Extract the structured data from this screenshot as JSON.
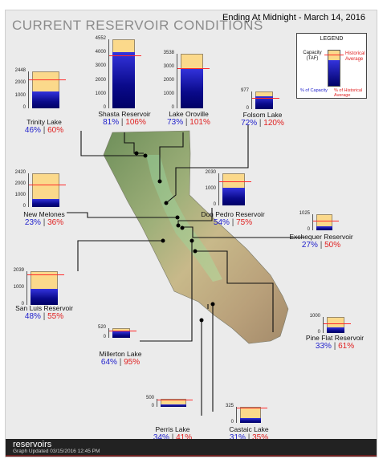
{
  "title": "CURRENT RESERVOIR CONDITIONS",
  "ending": "Ending At Midnight - March 14, 2016",
  "legend": {
    "title": "LEGEND",
    "capacity": "Capacity (TAF)",
    "historical": "Historical Average",
    "pct_capacity": "% of Capacity",
    "pct_historical": "% of Historical Average"
  },
  "reservoirs": [
    {
      "id": "trinity",
      "name": "Trinity Lake",
      "ticks": [
        "2448",
        "2000",
        "1000",
        "0"
      ],
      "pct_capacity": "46%",
      "pct_hist": "60%",
      "fill": 0.46,
      "hist": 0.77
    },
    {
      "id": "shasta",
      "name": "Shasta Reservoir",
      "ticks": [
        "4552",
        "4000",
        "3000",
        "2000",
        "1000",
        "0"
      ],
      "pct_capacity": "81%",
      "pct_hist": "106%",
      "fill": 0.81,
      "hist": 0.76
    },
    {
      "id": "oroville",
      "name": "Lake Oroville",
      "ticks": [
        "3538",
        "3000",
        "2000",
        "1000",
        "0"
      ],
      "pct_capacity": "73%",
      "pct_hist": "101%",
      "fill": 0.73,
      "hist": 0.72
    },
    {
      "id": "folsom",
      "name": "Folsom Lake",
      "ticks": [
        "977",
        "0"
      ],
      "pct_capacity": "72%",
      "pct_hist": "120%",
      "fill": 0.72,
      "hist": 0.6
    },
    {
      "id": "newmelones",
      "name": "New Melones",
      "ticks": [
        "2420",
        "2000",
        "1000",
        "0"
      ],
      "pct_capacity": "23%",
      "pct_hist": "36%",
      "fill": 0.23,
      "hist": 0.64
    },
    {
      "id": "donpedro",
      "name": "Don Pedro Reservoir",
      "ticks": [
        "2030",
        "1000",
        "0"
      ],
      "pct_capacity": "54%",
      "pct_hist": "75%",
      "fill": 0.54,
      "hist": 0.72
    },
    {
      "id": "exchequer",
      "name": "Exchequer Reservoir",
      "ticks": [
        "1025",
        "0"
      ],
      "pct_capacity": "27%",
      "pct_hist": "50%",
      "fill": 0.27,
      "hist": 0.54
    },
    {
      "id": "sanluis",
      "name": "San Luis Reservoir",
      "ticks": [
        "2039",
        "1000",
        "0"
      ],
      "pct_capacity": "48%",
      "pct_hist": "55%",
      "fill": 0.48,
      "hist": 0.87
    },
    {
      "id": "millerton",
      "name": "Millerton Lake",
      "ticks": [
        "520",
        "0"
      ],
      "pct_capacity": "64%",
      "pct_hist": "95%",
      "fill": 0.64,
      "hist": 0.67
    },
    {
      "id": "pineflat",
      "name": "Pine Flat Reservoir",
      "ticks": [
        "1000",
        "0"
      ],
      "pct_capacity": "33%",
      "pct_hist": "61%",
      "fill": 0.33,
      "hist": 0.54
    },
    {
      "id": "perris",
      "name": "Perris Lake",
      "ticks": [
        "500",
        "0"
      ],
      "pct_capacity": "34%",
      "pct_hist": "41%",
      "fill": 0.34,
      "hist": 0.83
    },
    {
      "id": "castaic",
      "name": "Castaic Lake",
      "ticks": [
        "325",
        "0"
      ],
      "pct_capacity": "31%",
      "pct_hist": "35%",
      "fill": 0.31,
      "hist": 0.89
    }
  ],
  "footer": {
    "brand": "reservoirs",
    "updated": "Graph Updated 03/15/2016 12:45 PM"
  }
}
